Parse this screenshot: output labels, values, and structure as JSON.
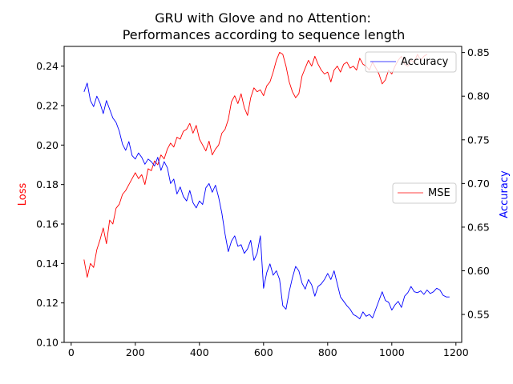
{
  "chart_data": {
    "type": "line",
    "title": "GRU with Glove and no Attention:",
    "subtitle": "Performances according to sequence length",
    "xlabel": "",
    "ylabel_left": "Loss",
    "ylabel_right": "Accuracy",
    "xlim": [
      -22,
      1218
    ],
    "ylim_left": [
      0.1,
      0.25
    ],
    "ylim_right": [
      0.518,
      0.857
    ],
    "x_ticks": [
      "0",
      "200",
      "400",
      "600",
      "800",
      "1000",
      "1200"
    ],
    "x_tick_values": [
      0,
      200,
      400,
      600,
      800,
      1000,
      1200
    ],
    "y_left_ticks": [
      "0.10",
      "0.12",
      "0.14",
      "0.16",
      "0.18",
      "0.20",
      "0.22",
      "0.24"
    ],
    "y_left_tick_values": [
      0.1,
      0.12,
      0.14,
      0.16,
      0.18,
      0.2,
      0.22,
      0.24
    ],
    "y_right_ticks": [
      "0.55",
      "0.60",
      "0.65",
      "0.70",
      "0.75",
      "0.80",
      "0.85"
    ],
    "y_right_tick_values": [
      0.55,
      0.6,
      0.65,
      0.7,
      0.75,
      0.8,
      0.85
    ],
    "grid": false,
    "series": [
      {
        "name": "MSE",
        "axis": "left",
        "color": "#ff0000",
        "legend_position": "center-right",
        "points": [
          [
            40,
            0.142
          ],
          [
            50,
            0.133
          ],
          [
            60,
            0.14
          ],
          [
            70,
            0.138
          ],
          [
            80,
            0.147
          ],
          [
            90,
            0.152
          ],
          [
            100,
            0.158
          ],
          [
            110,
            0.15
          ],
          [
            120,
            0.162
          ],
          [
            130,
            0.16
          ],
          [
            140,
            0.168
          ],
          [
            150,
            0.17
          ],
          [
            160,
            0.175
          ],
          [
            170,
            0.177
          ],
          [
            180,
            0.18
          ],
          [
            190,
            0.183
          ],
          [
            200,
            0.186
          ],
          [
            210,
            0.183
          ],
          [
            220,
            0.185
          ],
          [
            230,
            0.18
          ],
          [
            240,
            0.188
          ],
          [
            250,
            0.187
          ],
          [
            260,
            0.192
          ],
          [
            270,
            0.19
          ],
          [
            280,
            0.195
          ],
          [
            290,
            0.193
          ],
          [
            300,
            0.198
          ],
          [
            310,
            0.201
          ],
          [
            320,
            0.199
          ],
          [
            330,
            0.204
          ],
          [
            340,
            0.203
          ],
          [
            350,
            0.207
          ],
          [
            360,
            0.208
          ],
          [
            370,
            0.211
          ],
          [
            380,
            0.206
          ],
          [
            390,
            0.21
          ],
          [
            400,
            0.203
          ],
          [
            410,
            0.2
          ],
          [
            420,
            0.197
          ],
          [
            430,
            0.202
          ],
          [
            440,
            0.195
          ],
          [
            450,
            0.198
          ],
          [
            460,
            0.2
          ],
          [
            470,
            0.206
          ],
          [
            480,
            0.208
          ],
          [
            490,
            0.213
          ],
          [
            500,
            0.222
          ],
          [
            510,
            0.225
          ],
          [
            520,
            0.221
          ],
          [
            530,
            0.226
          ],
          [
            540,
            0.219
          ],
          [
            550,
            0.215
          ],
          [
            560,
            0.224
          ],
          [
            570,
            0.229
          ],
          [
            580,
            0.227
          ],
          [
            590,
            0.228
          ],
          [
            600,
            0.225
          ],
          [
            610,
            0.23
          ],
          [
            620,
            0.232
          ],
          [
            630,
            0.237
          ],
          [
            640,
            0.243
          ],
          [
            650,
            0.247
          ],
          [
            660,
            0.246
          ],
          [
            670,
            0.24
          ],
          [
            680,
            0.232
          ],
          [
            690,
            0.227
          ],
          [
            700,
            0.224
          ],
          [
            710,
            0.226
          ],
          [
            720,
            0.235
          ],
          [
            730,
            0.239
          ],
          [
            740,
            0.243
          ],
          [
            750,
            0.24
          ],
          [
            760,
            0.245
          ],
          [
            770,
            0.241
          ],
          [
            780,
            0.238
          ],
          [
            790,
            0.236
          ],
          [
            800,
            0.237
          ],
          [
            810,
            0.232
          ],
          [
            820,
            0.238
          ],
          [
            830,
            0.24
          ],
          [
            840,
            0.237
          ],
          [
            850,
            0.241
          ],
          [
            860,
            0.242
          ],
          [
            870,
            0.239
          ],
          [
            880,
            0.24
          ],
          [
            890,
            0.238
          ],
          [
            900,
            0.244
          ],
          [
            910,
            0.241
          ],
          [
            920,
            0.24
          ],
          [
            930,
            0.238
          ],
          [
            940,
            0.242
          ],
          [
            950,
            0.239
          ],
          [
            960,
            0.236
          ],
          [
            970,
            0.231
          ],
          [
            980,
            0.233
          ],
          [
            990,
            0.238
          ],
          [
            1000,
            0.236
          ],
          [
            1010,
            0.24
          ],
          [
            1020,
            0.243
          ],
          [
            1030,
            0.245
          ],
          [
            1040,
            0.241
          ],
          [
            1050,
            0.24
          ],
          [
            1060,
            0.243
          ],
          [
            1070,
            0.242
          ],
          [
            1080,
            0.246
          ],
          [
            1090,
            0.243
          ],
          [
            1100,
            0.245
          ],
          [
            1110,
            0.246
          ]
        ]
      },
      {
        "name": "Accuracy",
        "axis": "right",
        "color": "#0000ff",
        "legend_position": "top-right",
        "points": [
          [
            40,
            0.805
          ],
          [
            50,
            0.815
          ],
          [
            60,
            0.795
          ],
          [
            70,
            0.788
          ],
          [
            80,
            0.8
          ],
          [
            90,
            0.792
          ],
          [
            100,
            0.78
          ],
          [
            110,
            0.795
          ],
          [
            120,
            0.785
          ],
          [
            130,
            0.775
          ],
          [
            140,
            0.77
          ],
          [
            150,
            0.76
          ],
          [
            160,
            0.745
          ],
          [
            170,
            0.738
          ],
          [
            180,
            0.748
          ],
          [
            190,
            0.732
          ],
          [
            200,
            0.728
          ],
          [
            210,
            0.735
          ],
          [
            220,
            0.73
          ],
          [
            230,
            0.722
          ],
          [
            240,
            0.728
          ],
          [
            250,
            0.725
          ],
          [
            260,
            0.72
          ],
          [
            270,
            0.73
          ],
          [
            280,
            0.715
          ],
          [
            290,
            0.725
          ],
          [
            300,
            0.718
          ],
          [
            310,
            0.7
          ],
          [
            320,
            0.705
          ],
          [
            330,
            0.688
          ],
          [
            340,
            0.696
          ],
          [
            350,
            0.685
          ],
          [
            360,
            0.68
          ],
          [
            370,
            0.692
          ],
          [
            380,
            0.678
          ],
          [
            390,
            0.672
          ],
          [
            400,
            0.68
          ],
          [
            410,
            0.676
          ],
          [
            420,
            0.695
          ],
          [
            430,
            0.7
          ],
          [
            440,
            0.69
          ],
          [
            450,
            0.698
          ],
          [
            460,
            0.684
          ],
          [
            470,
            0.666
          ],
          [
            480,
            0.642
          ],
          [
            490,
            0.622
          ],
          [
            500,
            0.634
          ],
          [
            510,
            0.64
          ],
          [
            520,
            0.628
          ],
          [
            530,
            0.63
          ],
          [
            540,
            0.62
          ],
          [
            550,
            0.625
          ],
          [
            560,
            0.635
          ],
          [
            570,
            0.612
          ],
          [
            580,
            0.62
          ],
          [
            590,
            0.64
          ],
          [
            600,
            0.58
          ],
          [
            610,
            0.598
          ],
          [
            620,
            0.608
          ],
          [
            630,
            0.595
          ],
          [
            640,
            0.6
          ],
          [
            650,
            0.59
          ],
          [
            660,
            0.56
          ],
          [
            670,
            0.556
          ],
          [
            680,
            0.576
          ],
          [
            690,
            0.592
          ],
          [
            700,
            0.605
          ],
          [
            710,
            0.6
          ],
          [
            720,
            0.586
          ],
          [
            730,
            0.579
          ],
          [
            740,
            0.59
          ],
          [
            750,
            0.584
          ],
          [
            760,
            0.571
          ],
          [
            770,
            0.582
          ],
          [
            780,
            0.585
          ],
          [
            790,
            0.59
          ],
          [
            800,
            0.597
          ],
          [
            810,
            0.59
          ],
          [
            820,
            0.6
          ],
          [
            830,
            0.585
          ],
          [
            840,
            0.57
          ],
          [
            850,
            0.565
          ],
          [
            860,
            0.56
          ],
          [
            870,
            0.556
          ],
          [
            880,
            0.55
          ],
          [
            890,
            0.548
          ],
          [
            900,
            0.545
          ],
          [
            910,
            0.553
          ],
          [
            920,
            0.548
          ],
          [
            930,
            0.55
          ],
          [
            940,
            0.546
          ],
          [
            950,
            0.556
          ],
          [
            960,
            0.566
          ],
          [
            970,
            0.576
          ],
          [
            980,
            0.566
          ],
          [
            990,
            0.564
          ],
          [
            1000,
            0.555
          ],
          [
            1010,
            0.561
          ],
          [
            1020,
            0.565
          ],
          [
            1030,
            0.558
          ],
          [
            1040,
            0.571
          ],
          [
            1050,
            0.575
          ],
          [
            1060,
            0.582
          ],
          [
            1070,
            0.576
          ],
          [
            1080,
            0.575
          ],
          [
            1090,
            0.577
          ],
          [
            1100,
            0.573
          ],
          [
            1110,
            0.578
          ],
          [
            1120,
            0.574
          ],
          [
            1130,
            0.576
          ],
          [
            1140,
            0.58
          ],
          [
            1150,
            0.578
          ],
          [
            1160,
            0.572
          ],
          [
            1170,
            0.57
          ],
          [
            1180,
            0.57
          ]
        ]
      }
    ]
  }
}
